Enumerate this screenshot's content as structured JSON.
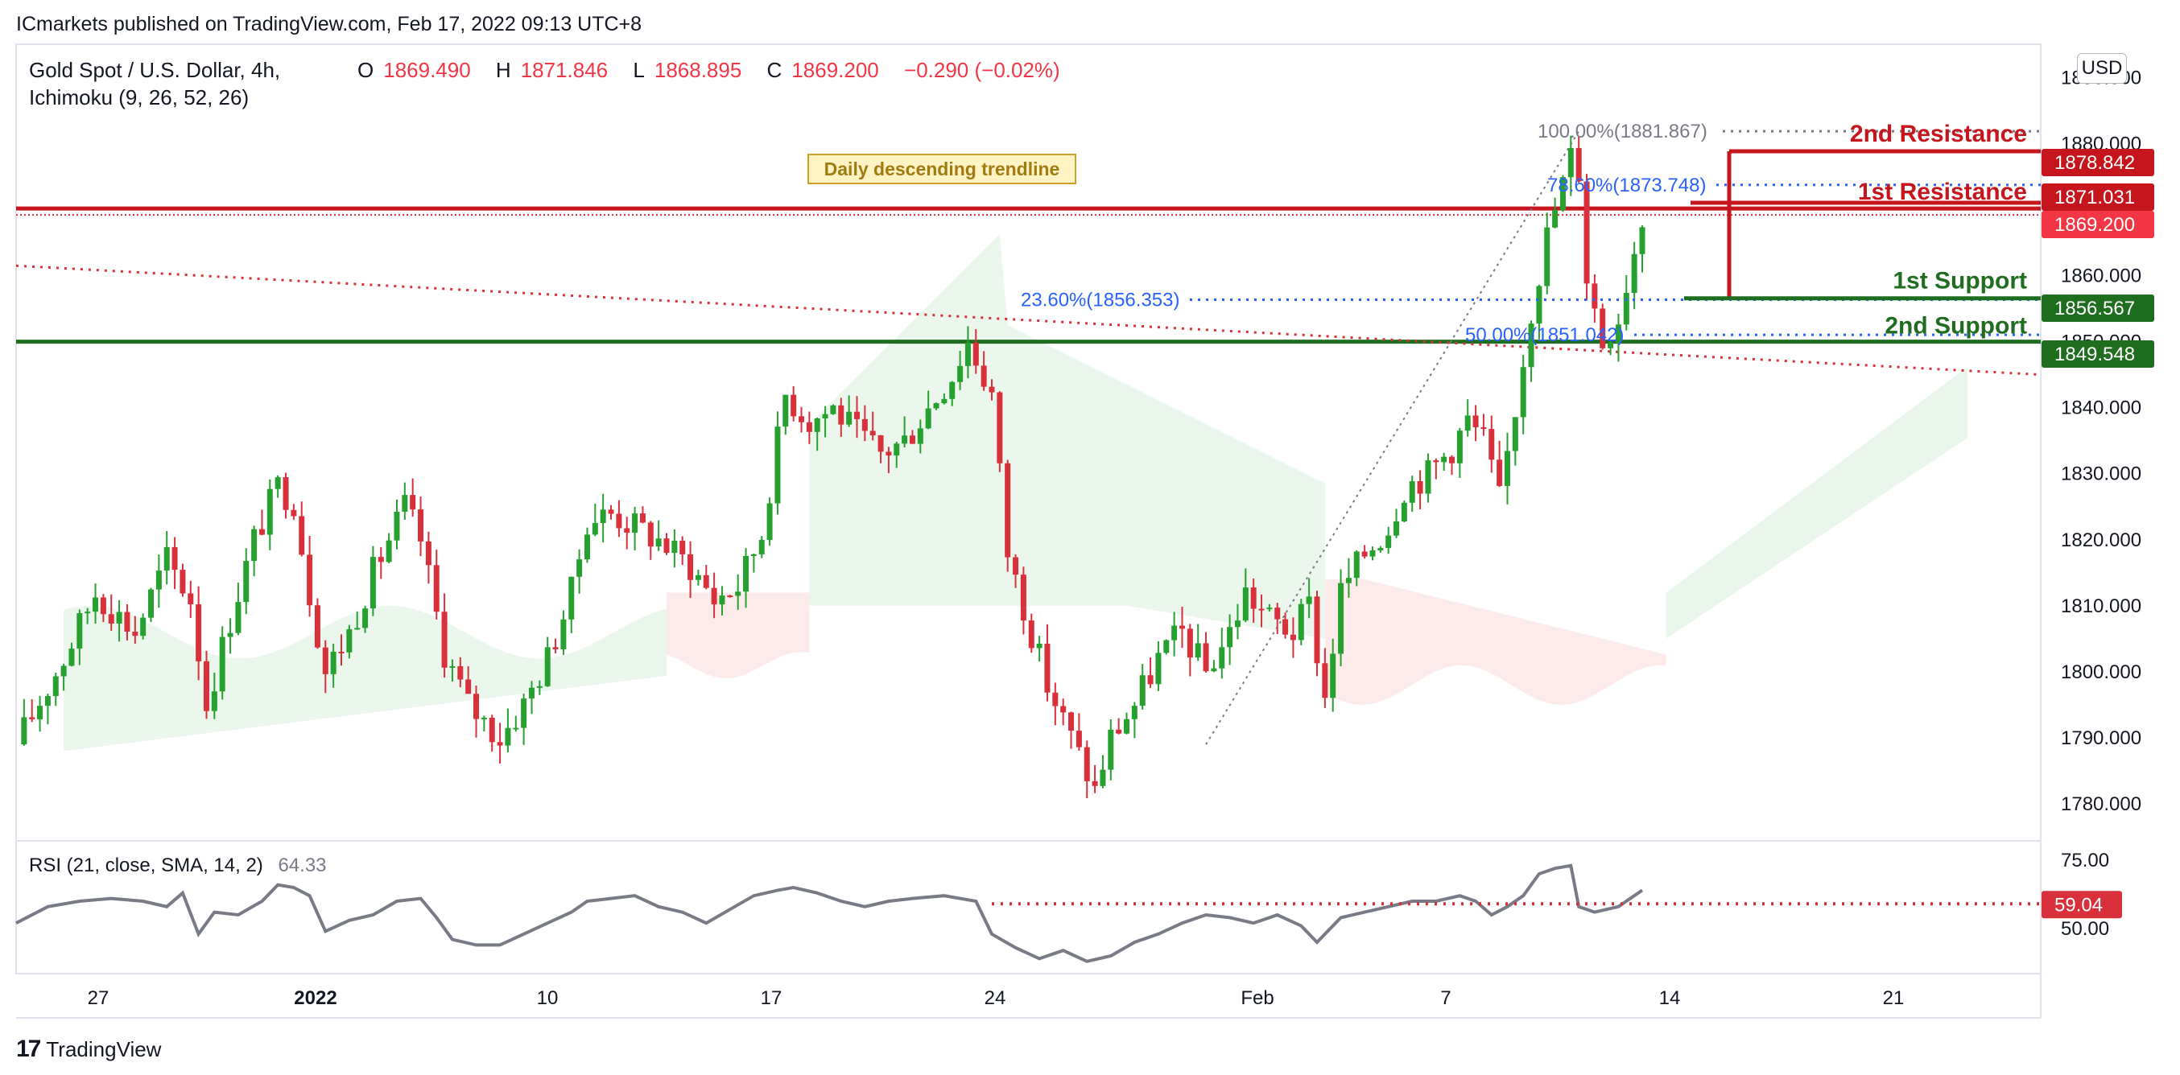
{
  "publisher": "ICmarkets published on TradingView.com, Feb 17, 2022 09:13 UTC+8",
  "symbol": "Gold Spot / U.S. Dollar, 4h,",
  "indicator": "Ichimoku (9, 26, 52, 26)",
  "ohlc": {
    "o_label": "O",
    "o": "1869.490",
    "h_label": "H",
    "h": "1871.846",
    "l_label": "L",
    "l": "1868.895",
    "c_label": "C",
    "c": "1869.200",
    "change": "−0.290 (−0.02%)"
  },
  "currency_button": "USD",
  "brand": "TradingView",
  "colors": {
    "up": "#26a130",
    "down": "#d9313b",
    "resistance": "#c4161c",
    "support": "#1f6e1f",
    "fib": "#2962ff",
    "rsi": "#787b86",
    "cloud_bull": "#e8f5e9",
    "cloud_bear": "#fde8e8"
  },
  "chart_data": {
    "type": "candlestick",
    "timeframe": "4h",
    "y_axis": {
      "range": [
        1775,
        1892
      ],
      "ticks": [
        "1890.000",
        "1880.000",
        "1870.000",
        "1860.000",
        "1850.000",
        "1840.000",
        "1830.000",
        "1820.000",
        "1810.000",
        "1800.000",
        "1790.000",
        "1780.000"
      ]
    },
    "x_axis_ticks": [
      "27",
      "2022",
      "10",
      "17",
      "24",
      "Feb",
      "7",
      "14",
      "21"
    ],
    "price_tags": [
      {
        "value": "1878.842",
        "role": "resistance"
      },
      {
        "value": "1871.031",
        "role": "resistance"
      },
      {
        "value": "1869.200",
        "role": "last"
      },
      {
        "value": "1856.567",
        "role": "support"
      },
      {
        "value": "1849.548",
        "role": "support"
      }
    ],
    "levels": {
      "second_resistance": {
        "label": "2nd Resistance",
        "price": 1878.842
      },
      "first_resistance": {
        "label": "1st Resistance",
        "price": 1871.031
      },
      "first_support": {
        "label": "1st Support",
        "price": 1856.567
      },
      "second_support": {
        "label": "2nd Support",
        "price": 1849.548
      },
      "horizontal_resistance": 1869.2,
      "horizontal_support": 1850.0
    },
    "fibonacci": [
      {
        "label": "100.00%(1881.867)",
        "price": 1881.867
      },
      {
        "label": "78.60%(1873.748)",
        "price": 1873.748
      },
      {
        "label": "23.60%(1856.353)",
        "price": 1856.353
      },
      {
        "label": "50.00%(1851.042)",
        "price": 1851.042
      }
    ],
    "trendline_label": "Daily descending trendline",
    "close_path": [
      [
        0,
        1789
      ],
      [
        6,
        1802
      ],
      [
        10,
        1812
      ],
      [
        15,
        1806
      ],
      [
        19,
        1817
      ],
      [
        22,
        1811
      ],
      [
        24,
        1795
      ],
      [
        27,
        1808
      ],
      [
        30,
        1820
      ],
      [
        33,
        1828
      ],
      [
        35,
        1826
      ],
      [
        37,
        1812
      ],
      [
        39,
        1800
      ],
      [
        42,
        1806
      ],
      [
        45,
        1815
      ],
      [
        49,
        1825
      ],
      [
        51,
        1820
      ],
      [
        54,
        1803
      ],
      [
        57,
        1795
      ],
      [
        61,
        1790
      ],
      [
        64,
        1795
      ],
      [
        67,
        1802
      ],
      [
        70,
        1812
      ],
      [
        72,
        1823
      ],
      [
        75,
        1824
      ],
      [
        78,
        1822
      ],
      [
        81,
        1820
      ],
      [
        85,
        1816
      ],
      [
        88,
        1811
      ],
      [
        91,
        1813
      ],
      [
        94,
        1821
      ],
      [
        97,
        1842
      ],
      [
        100,
        1838
      ],
      [
        103,
        1840
      ],
      [
        106,
        1836
      ],
      [
        109,
        1833
      ],
      [
        112,
        1835
      ],
      [
        115,
        1840
      ],
      [
        118,
        1845
      ],
      [
        120,
        1850
      ],
      [
        123,
        1842
      ],
      [
        125,
        1818
      ],
      [
        128,
        1806
      ],
      [
        130,
        1798
      ],
      [
        133,
        1790
      ],
      [
        136,
        1782
      ],
      [
        138,
        1790
      ],
      [
        141,
        1795
      ],
      [
        144,
        1802
      ],
      [
        147,
        1806
      ],
      [
        150,
        1800
      ],
      [
        153,
        1806
      ],
      [
        155,
        1812
      ],
      [
        158,
        1808
      ],
      [
        161,
        1806
      ],
      [
        163,
        1810
      ],
      [
        165,
        1796
      ],
      [
        167,
        1812
      ],
      [
        170,
        1818
      ],
      [
        173,
        1822
      ],
      [
        175,
        1828
      ],
      [
        178,
        1830
      ],
      [
        181,
        1834
      ],
      [
        183,
        1838
      ],
      [
        185,
        1835
      ],
      [
        187,
        1826
      ],
      [
        189,
        1840
      ],
      [
        191,
        1855
      ],
      [
        193,
        1866
      ],
      [
        196,
        1878
      ],
      [
        197,
        1876
      ],
      [
        198,
        1860
      ],
      [
        200,
        1850
      ],
      [
        202,
        1854
      ],
      [
        205,
        1869
      ]
    ],
    "rsi": {
      "label": "RSI (21, close, SMA, 14, 2)",
      "value": "64.33",
      "ticks": [
        "75.00",
        "50.00"
      ],
      "range": [
        35,
        80
      ],
      "level": {
        "value": "59.04"
      },
      "series": [
        [
          0,
          52
        ],
        [
          4,
          58
        ],
        [
          8,
          60
        ],
        [
          12,
          61
        ],
        [
          16,
          60
        ],
        [
          19,
          58
        ],
        [
          21,
          63
        ],
        [
          23,
          48
        ],
        [
          25,
          56
        ],
        [
          28,
          55
        ],
        [
          31,
          60
        ],
        [
          33,
          66
        ],
        [
          35,
          65
        ],
        [
          37,
          62
        ],
        [
          39,
          49
        ],
        [
          42,
          53
        ],
        [
          45,
          55
        ],
        [
          48,
          60
        ],
        [
          51,
          61
        ],
        [
          53,
          54
        ],
        [
          55,
          46
        ],
        [
          58,
          44
        ],
        [
          61,
          44
        ],
        [
          64,
          48
        ],
        [
          67,
          52
        ],
        [
          70,
          56
        ],
        [
          72,
          60
        ],
        [
          75,
          61
        ],
        [
          78,
          62
        ],
        [
          81,
          58
        ],
        [
          84,
          56
        ],
        [
          87,
          52
        ],
        [
          90,
          57
        ],
        [
          93,
          62
        ],
        [
          96,
          64
        ],
        [
          98,
          65
        ],
        [
          101,
          63
        ],
        [
          104,
          60
        ],
        [
          107,
          58
        ],
        [
          110,
          60
        ],
        [
          113,
          61
        ],
        [
          117,
          62
        ],
        [
          121,
          60
        ],
        [
          123,
          48
        ],
        [
          126,
          43
        ],
        [
          129,
          39
        ],
        [
          132,
          42
        ],
        [
          135,
          38
        ],
        [
          138,
          40
        ],
        [
          141,
          45
        ],
        [
          144,
          48
        ],
        [
          147,
          52
        ],
        [
          150,
          55
        ],
        [
          153,
          54
        ],
        [
          156,
          52
        ],
        [
          159,
          55
        ],
        [
          162,
          51
        ],
        [
          164,
          45
        ],
        [
          167,
          54
        ],
        [
          170,
          56
        ],
        [
          173,
          58
        ],
        [
          176,
          60
        ],
        [
          179,
          60
        ],
        [
          182,
          62
        ],
        [
          184,
          60
        ],
        [
          186,
          55
        ],
        [
          188,
          58
        ],
        [
          190,
          62
        ],
        [
          192,
          70
        ],
        [
          194,
          72
        ],
        [
          196,
          73
        ],
        [
          197,
          58
        ],
        [
          199,
          56
        ],
        [
          202,
          58
        ],
        [
          205,
          64
        ]
      ]
    }
  }
}
